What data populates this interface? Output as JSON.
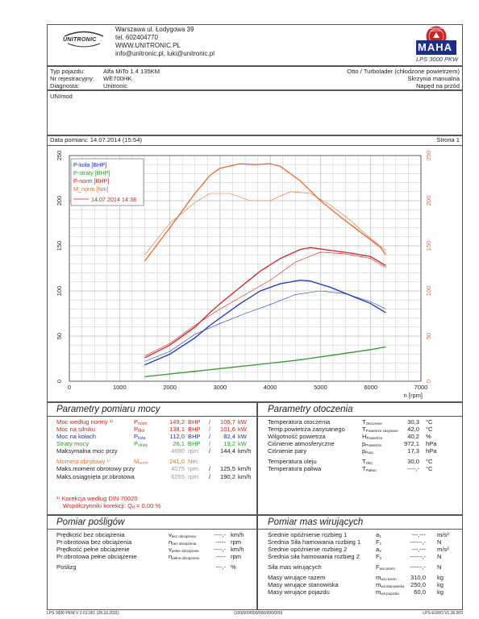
{
  "header": {
    "company_logo_text": "UNITRONIC",
    "address": [
      "Warszawa ul. Łodygowa 39",
      "tel. 602404770",
      "WWW.UNITRONIC.PL",
      "info@unitronic.pl, luki@unitronic.pl"
    ],
    "maha_logo_text": "MAHA",
    "maha_badge_text": "Maschinenbau Haldenwang",
    "product": "LPS 3000 PKW"
  },
  "vehicle": {
    "type_label": "Typ pojazdu:",
    "type_value": "Alfa MiTo 1.4 135KM",
    "reg_label": "Nr rejestracyjny:",
    "reg_value": "WE700HK",
    "diag_label": "Diagnosta:",
    "diag_value": "Unitronic",
    "engine": "Otto / Turbolader (chłodzone powietrzem)",
    "gearbox": "Skrzynia manualna",
    "drive": "Napęd na przód"
  },
  "notes": "UNImod",
  "measurement": {
    "date_label": "Data pomiaru: 14.07.2014 (15:54)",
    "page_label": "Strona 1"
  },
  "chart_data": {
    "type": "line",
    "x_unit": "n [rpm]",
    "xlim": [
      0,
      7000
    ],
    "ylim_left": [
      0,
      250
    ],
    "ylim_right": [
      0,
      250
    ],
    "x_ticks": [
      "0",
      "1000",
      "2000",
      "3000",
      "4000",
      "5000",
      "6000",
      "7000"
    ],
    "y_ticks": [
      "0",
      "50",
      "100",
      "150",
      "200",
      "250"
    ],
    "legend": [
      "P-koła [BHP]",
      "P-straty [BHP]",
      "P-norm [BHP]",
      "M_norm [Nm]",
      "14.07.2014 14:38"
    ],
    "colors": {
      "blue": "#1a32c8",
      "green": "#2c9a2c",
      "red": "#d42020",
      "orange": "#e86a28"
    },
    "series": [
      {
        "name": "P-koła [BHP]",
        "x": [
          1500,
          2000,
          2500,
          2800,
          3000,
          3400,
          3800,
          4200,
          4600,
          4800,
          5200,
          5600,
          6000,
          6300
        ],
        "y": [
          18,
          30,
          48,
          62,
          70,
          86,
          100,
          108,
          112,
          111,
          104,
          95,
          86,
          76
        ]
      },
      {
        "name": "P-straty [BHP]",
        "x": [
          1500,
          2000,
          2500,
          3000,
          3500,
          4000,
          4500,
          5000,
          5500,
          6000,
          6300
        ],
        "y": [
          5,
          8,
          11,
          14,
          17,
          20,
          23,
          27,
          31,
          35,
          38
        ]
      },
      {
        "name": "P-norm [BHP]",
        "x": [
          1500,
          2000,
          2500,
          2800,
          3000,
          3400,
          3800,
          4200,
          4600,
          4800,
          5200,
          5600,
          6000,
          6300
        ],
        "y": [
          26,
          40,
          60,
          76,
          86,
          104,
          122,
          136,
          146,
          148,
          145,
          142,
          138,
          128
        ]
      },
      {
        "name": "M_norm [Nm]",
        "x": [
          1500,
          2000,
          2500,
          2800,
          3000,
          3400,
          3700,
          4000,
          4200,
          4600,
          5000,
          5400,
          5800,
          6200,
          6300
        ],
        "y": [
          133,
          170,
          208,
          228,
          236,
          241,
          240,
          241,
          238,
          222,
          200,
          182,
          165,
          148,
          140
        ]
      },
      {
        "name": "P-koła ref",
        "x": [
          1500,
          2000,
          2500,
          3000,
          3500,
          4000,
          4500,
          5000,
          5500,
          6000,
          6300
        ],
        "y": [
          22,
          33,
          52,
          64,
          75,
          85,
          96,
          100,
          97,
          88,
          80
        ]
      },
      {
        "name": "P-norm ref",
        "x": [
          1500,
          2000,
          2500,
          3000,
          3500,
          4000,
          4500,
          5000,
          5500,
          6000,
          6300
        ],
        "y": [
          28,
          42,
          62,
          80,
          96,
          112,
          132,
          143,
          141,
          136,
          126
        ]
      },
      {
        "name": "M_norm ref",
        "x": [
          1500,
          2000,
          2500,
          2800,
          3200,
          3600,
          4000,
          4400,
          4800,
          5200,
          5600,
          6000,
          6300
        ],
        "y": [
          140,
          175,
          198,
          208,
          208,
          200,
          200,
          210,
          208,
          195,
          178,
          158,
          145
        ]
      }
    ]
  },
  "power": {
    "title": "Parametry pomiaru mocy",
    "rows": [
      {
        "label": "Moc według normy ¹⁾",
        "sym": "P",
        "sub": "norm",
        "v1": "149,2",
        "u1": "BHP",
        "v2": "109,7",
        "u2": "kW",
        "color": "red"
      },
      {
        "label": "Moc na silniku",
        "sym": "P",
        "sub": "Mot",
        "v1": "138,1",
        "u1": "BHP",
        "v2": "101,6",
        "u2": "kW",
        "color": "red"
      },
      {
        "label": "Moc na kołach",
        "sym": "P",
        "sub": "koła",
        "v1": "112,0",
        "u1": "BHP",
        "v2": "82,4",
        "u2": "kW",
        "color": "blue"
      },
      {
        "label": "Straty mocy",
        "sym": "P",
        "sub": "straty",
        "v1": "26,1",
        "u1": "BHP",
        "v2": "19,2",
        "u2": "kW",
        "color": "green"
      },
      {
        "label": "Maksymalna moc przy",
        "sym": "",
        "sub": "",
        "v1": "4690",
        "u1": "rpm",
        "v2": "144,4",
        "u2": "km/h",
        "color": "dark"
      },
      {
        "label": "Moment obrotowy ¹⁾",
        "sym": "M",
        "sub": "norm",
        "v1": "241,0",
        "u1": "Nm",
        "v2": "",
        "u2": "",
        "color": "orange"
      },
      {
        "label": "Maks.moment obrotowy przy",
        "sym": "",
        "sub": "",
        "v1": "4075",
        "u1": "rpm",
        "v2": "125,5",
        "u2": "km/h",
        "color": "dark"
      },
      {
        "label": "Maks.osiągnięta pr.obrotowa",
        "sym": "",
        "sub": "",
        "v1": "6255",
        "u1": "rpm",
        "v2": "190,2",
        "u2": "km/h",
        "color": "dark"
      }
    ],
    "footnote1": "¹⁾ Korekcja według DIN 70020",
    "footnote2": "Współczynniki korekcji: Q",
    "footnote2_sub": "d",
    "footnote2_val": " = 0,00 %"
  },
  "environment": {
    "title": "Parametry otoczenia",
    "rows": [
      {
        "label": "Temperatura otoczenia",
        "sym": "T",
        "sub": "Otoczenie",
        "val": "30,3",
        "unit": "°C"
      },
      {
        "label": "Temp.powietrza zasysanego",
        "sym": "T",
        "sub": "Powietrze zasysane",
        "val": "42,0",
        "unit": "°C"
      },
      {
        "label": "Wilgotność powietrza",
        "sym": "H",
        "sub": "Powietrze",
        "val": "40,2",
        "unit": "%"
      },
      {
        "label": "Ciśnienie atmosferyczne",
        "sym": "p",
        "sub": "Powietrze",
        "val": "972,1",
        "unit": "hPa"
      },
      {
        "label": "Ciśnienie pary",
        "sym": "p",
        "sub": "Para",
        "val": "17,3",
        "unit": "hPa"
      },
      {
        "label": "Temperatura oleju",
        "sym": "T",
        "sub": "Olej",
        "val": "30,0",
        "unit": "°C"
      },
      {
        "label": "Temperatura paliwa",
        "sym": "T",
        "sub": "Paliwo",
        "val": "----,-",
        "unit": "°C"
      }
    ]
  },
  "indirect": {
    "title": "Pomiar pośligów",
    "rows": [
      {
        "label": "Prędkość bez obciążenia",
        "sym": "v",
        "sub": "bez obciążenia",
        "val": "----,-",
        "unit": "km/h"
      },
      {
        "label": "Pr.obrotowa bez obciążenia",
        "sym": "n",
        "sub": "bez obciążenia",
        "val": "-----",
        "unit": "rpm"
      },
      {
        "label": "Prędkość pełne obciążenie",
        "sym": "v",
        "sub": "pełne obciążenie",
        "val": "----,-",
        "unit": "km/h"
      },
      {
        "label": "Pr.obrotowa pełne obciążenie",
        "sym": "n",
        "sub": "pełne obciążenie",
        "val": "-----",
        "unit": "rpm"
      },
      {
        "label": "Poślizg",
        "sym": "",
        "sub": "",
        "val": "---,-",
        "unit": "%"
      }
    ]
  },
  "mass": {
    "title": "Pomiar mas wirujących",
    "rows": [
      {
        "label": "Średnie opóźnienie rozbieg 1",
        "sym": "a",
        "sub": "1",
        "val": "---,---",
        "unit": "m/s²"
      },
      {
        "label": "Średnia Siła hamowania rozbieg 1",
        "sym": "F",
        "sub": "1",
        "val": "------,-",
        "unit": "N"
      },
      {
        "label": "Średnie opóźnienie rozbieg 2",
        "sym": "a",
        "sub": "2",
        "val": "---,---",
        "unit": "m/s²"
      },
      {
        "label": "Średnia siła hamowania rozbieg 2",
        "sym": "F",
        "sub": "2",
        "val": "------,-",
        "unit": "N"
      },
      {
        "label": "Siła mas wirujących",
        "sym": "F",
        "sub": "wir.razem",
        "val": "------,-",
        "unit": "N"
      },
      {
        "label": "Masy wirujące razem",
        "sym": "m",
        "sub": "wir.razem",
        "val": "310,0",
        "unit": "kg"
      },
      {
        "label": "Masy wirujące stanowiska",
        "sym": "m",
        "sub": "wir.stanowiska",
        "val": "250,0",
        "unit": "kg"
      },
      {
        "label": "Masy wirujące pojazdu",
        "sym": "m",
        "sub": "wir.pojazdu",
        "val": "60,0",
        "unit": "kg"
      }
    ]
  },
  "footer": {
    "left": "LPS 3000 PKW V 2.01.001 (28.10.2011)",
    "center": "(100/000/000/000/000/000)",
    "right": "LPS-EURO V1.36.003"
  }
}
